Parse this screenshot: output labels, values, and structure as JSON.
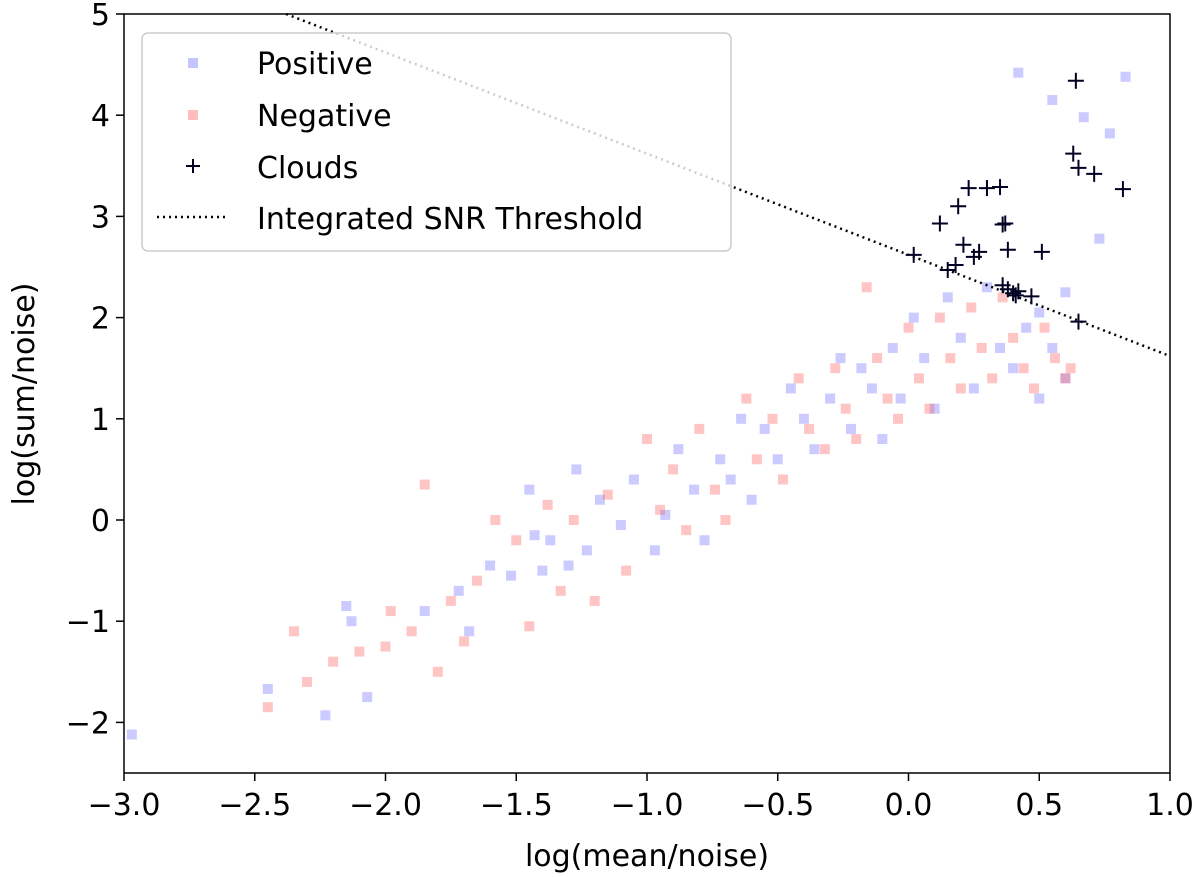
{
  "chart_data": {
    "type": "scatter",
    "xlabel": "log(mean/noise)",
    "ylabel": "log(sum/noise)",
    "xlim": [
      -3.0,
      1.0
    ],
    "ylim": [
      -2.5,
      5.0
    ],
    "x_ticks": [
      -3.0,
      -2.5,
      -2.0,
      -1.5,
      -1.0,
      -0.5,
      0.0,
      0.5,
      1.0
    ],
    "x_tick_labels": [
      "−3.0",
      "−2.5",
      "−2.0",
      "−1.5",
      "−1.0",
      "−0.5",
      "0.0",
      "0.5",
      "1.0"
    ],
    "y_ticks": [
      -2,
      -1,
      0,
      1,
      2,
      3,
      4,
      5
    ],
    "y_tick_labels": [
      "−2",
      "−1",
      "0",
      "1",
      "2",
      "3",
      "4",
      "5"
    ],
    "grid": false,
    "legend_position": "top-left",
    "colors": {
      "positive": "#6b6bff",
      "negative": "#ff5a5a",
      "clouds": "#000022"
    },
    "series": [
      {
        "name": "Positive",
        "marker": "square",
        "x": [
          -2.97,
          -2.45,
          -2.23,
          -2.15,
          -2.13,
          -2.07,
          -1.85,
          -1.72,
          -1.68,
          -1.6,
          -1.52,
          -1.45,
          -1.43,
          -1.4,
          -1.37,
          -1.3,
          -1.27,
          -1.23,
          -1.18,
          -1.1,
          -1.05,
          -0.97,
          -0.93,
          -0.88,
          -0.82,
          -0.78,
          -0.72,
          -0.68,
          -0.64,
          -0.6,
          -0.55,
          -0.5,
          -0.45,
          -0.4,
          -0.36,
          -0.3,
          -0.26,
          -0.22,
          -0.18,
          -0.14,
          -0.1,
          -0.06,
          -0.03,
          0.02,
          0.06,
          0.1,
          0.15,
          0.2,
          0.25,
          0.3,
          0.35,
          0.4,
          0.45,
          0.5,
          0.55,
          0.6,
          0.42,
          0.55,
          0.67,
          0.77,
          0.83,
          0.73,
          0.6,
          0.5
        ],
        "y": [
          -2.12,
          -1.67,
          -1.93,
          -0.85,
          -1.0,
          -1.75,
          -0.9,
          -0.7,
          -1.1,
          -0.45,
          -0.55,
          0.3,
          -0.15,
          -0.5,
          -0.2,
          -0.45,
          0.5,
          -0.3,
          0.2,
          -0.05,
          0.4,
          -0.3,
          0.05,
          0.7,
          0.3,
          -0.2,
          0.6,
          0.4,
          1.0,
          0.2,
          0.9,
          0.6,
          1.3,
          1.0,
          0.7,
          1.2,
          1.6,
          0.9,
          1.5,
          1.3,
          0.8,
          1.7,
          1.2,
          2.0,
          1.6,
          1.1,
          2.2,
          1.8,
          1.3,
          2.3,
          1.7,
          1.5,
          1.9,
          1.2,
          1.7,
          1.4,
          4.42,
          4.15,
          3.98,
          3.82,
          4.38,
          2.78,
          2.25,
          2.05
        ]
      },
      {
        "name": "Negative",
        "marker": "square",
        "x": [
          -2.45,
          -2.35,
          -2.3,
          -2.2,
          -2.1,
          -2.0,
          -1.98,
          -1.9,
          -1.85,
          -1.8,
          -1.75,
          -1.7,
          -1.65,
          -1.58,
          -1.5,
          -1.45,
          -1.38,
          -1.33,
          -1.28,
          -1.2,
          -1.15,
          -1.08,
          -1.0,
          -0.95,
          -0.9,
          -0.85,
          -0.8,
          -0.74,
          -0.7,
          -0.62,
          -0.58,
          -0.52,
          -0.48,
          -0.42,
          -0.38,
          -0.32,
          -0.28,
          -0.24,
          -0.2,
          -0.16,
          -0.12,
          -0.08,
          -0.04,
          0.0,
          0.04,
          0.08,
          0.12,
          0.16,
          0.2,
          0.24,
          0.28,
          0.32,
          0.36,
          0.4,
          0.44,
          0.48,
          0.52,
          0.56,
          0.6,
          0.62
        ],
        "y": [
          -1.85,
          -1.1,
          -1.6,
          -1.4,
          -1.3,
          -1.25,
          -0.9,
          -1.1,
          0.35,
          -1.5,
          -0.8,
          -1.2,
          -0.6,
          0.0,
          -0.2,
          -1.05,
          0.15,
          -0.7,
          0.0,
          -0.8,
          0.25,
          -0.5,
          0.8,
          0.1,
          0.5,
          -0.1,
          0.9,
          0.3,
          0.0,
          1.2,
          0.6,
          1.0,
          0.4,
          1.4,
          0.9,
          0.7,
          1.5,
          1.1,
          0.8,
          2.3,
          1.6,
          1.2,
          1.0,
          1.9,
          1.4,
          1.1,
          2.0,
          1.6,
          1.3,
          2.1,
          1.7,
          1.4,
          2.2,
          1.8,
          1.5,
          1.3,
          1.9,
          1.6,
          1.4,
          1.5
        ]
      },
      {
        "name": "Clouds",
        "marker": "plus",
        "x": [
          0.02,
          0.12,
          0.15,
          0.18,
          0.19,
          0.21,
          0.23,
          0.25,
          0.27,
          0.3,
          0.35,
          0.36,
          0.37,
          0.36,
          0.38,
          0.38,
          0.4,
          0.41,
          0.42,
          0.47,
          0.51,
          0.63,
          0.64,
          0.65,
          0.65,
          0.71,
          0.82
        ],
        "y": [
          2.62,
          2.93,
          2.47,
          2.52,
          3.1,
          2.72,
          3.28,
          2.6,
          2.65,
          3.28,
          3.29,
          2.92,
          2.93,
          2.32,
          2.28,
          2.67,
          2.24,
          2.22,
          2.26,
          2.21,
          2.65,
          3.62,
          4.34,
          3.48,
          1.96,
          3.42,
          3.27
        ]
      },
      {
        "name": "Integrated SNR Threshold",
        "marker": "dotted-line",
        "x": [
          -2.4,
          1.0
        ],
        "y": [
          5.02,
          1.62
        ]
      }
    ]
  }
}
